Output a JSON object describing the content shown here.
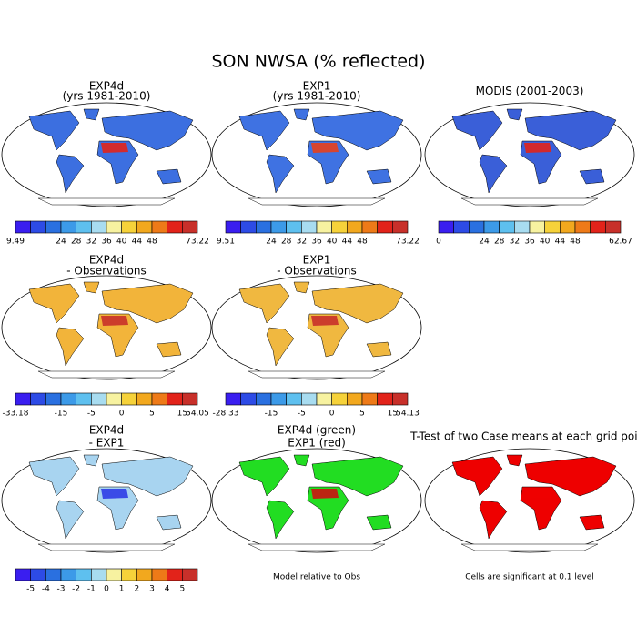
{
  "title": "SON NWSA (% reflected)",
  "panels": [
    {
      "title": "EXP4d",
      "subtitle": "(yrs 1981-2010)"
    },
    {
      "title": "EXP1",
      "subtitle": "(yrs 1981-2010)"
    },
    {
      "title": "MODIS (2001-2003)"
    },
    {
      "title": "EXP4d",
      "subtitle": "- Observations"
    },
    {
      "title": "EXP1",
      "subtitle": "- Observations"
    },
    {
      "title": "EXP4d",
      "subtitle": "- EXP1"
    },
    {
      "title": "EXP4d (green)",
      "subtitle": "EXP1 (red)"
    },
    {
      "title": "T-Test of two Case means at each grid point"
    }
  ],
  "colorbar_colors": [
    "#3a1ef0",
    "#2d4be6",
    "#2a70e0",
    "#3c9ae8",
    "#5ec0ef",
    "#a8dcf0",
    "#f7f2a0",
    "#f6d23a",
    "#f2a81e",
    "#ee7a18",
    "#e2231a",
    "#c8302a"
  ],
  "colorbars": [
    {
      "labels": [
        "9.49",
        null,
        null,
        "24",
        "28",
        "32",
        "36",
        "40",
        "44",
        "48",
        null,
        null,
        "73.22"
      ]
    },
    {
      "labels": [
        "9.51",
        null,
        null,
        "24",
        "28",
        "32",
        "36",
        "40",
        "44",
        "48",
        null,
        null,
        "73.22"
      ]
    },
    {
      "labels": [
        "0",
        null,
        null,
        "24",
        "28",
        "32",
        "36",
        "40",
        "44",
        "48",
        null,
        null,
        "62.67"
      ]
    },
    {
      "labels": [
        "-33.18",
        null,
        null,
        "-15",
        null,
        "-5",
        null,
        "0",
        null,
        "5",
        null,
        "15",
        "54.05"
      ]
    },
    {
      "labels": [
        "-28.33",
        null,
        null,
        "-15",
        null,
        "-5",
        null,
        "0",
        null,
        "5",
        null,
        "15",
        "54.13"
      ]
    },
    {
      "labels": [
        null,
        "-5",
        "-4",
        "-3",
        "-2",
        "-1",
        "0",
        "1",
        "2",
        "3",
        "4",
        "5",
        null
      ]
    }
  ],
  "notes": [
    "Model relative to Obs",
    "Cells are significant at 0.1 level"
  ]
}
